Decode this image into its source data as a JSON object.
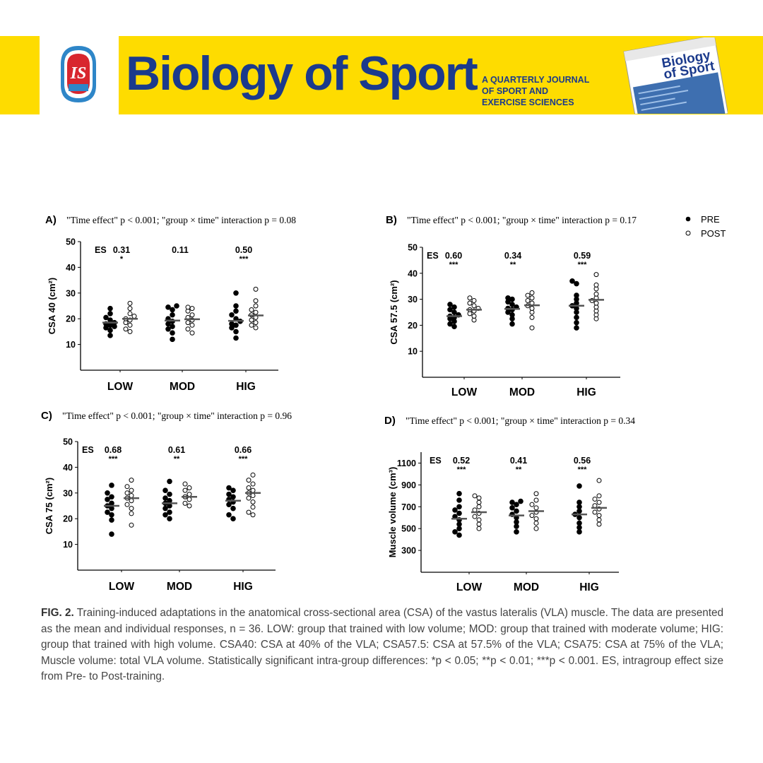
{
  "header": {
    "journal_title": "Biology of Sport",
    "tagline": [
      "A QUARTERLY JOURNAL",
      "OF SPORT AND",
      "EXERCISE SCIENCES"
    ],
    "cover_title_line1": "Biology",
    "cover_title_line2": "of Sport",
    "logo_text": "IS",
    "colors": {
      "band": "#FEDC00",
      "text": "#1B3A8C",
      "cover": "#3E6FB0"
    }
  },
  "legend": {
    "pre": "PRE",
    "post": "POST"
  },
  "chart_data": [
    {
      "type": "scatter",
      "panel": "A)",
      "title": "\"Time effect\" p < 0.001; \"group × time\" interaction p = 0.08",
      "ylabel": "CSA 40 (cm²)",
      "ylim": [
        0,
        50
      ],
      "yticks": [
        "10",
        "20",
        "30",
        "40",
        "50"
      ],
      "categories": [
        "LOW",
        "MOD",
        "HIG"
      ],
      "es_label": "ES",
      "es": [
        "0.31",
        "0.11",
        "0.50"
      ],
      "sig": [
        "*",
        "",
        "***"
      ],
      "series": [
        {
          "name": "PRE",
          "means": [
            18.5,
            19.3,
            19.2
          ],
          "points": [
            [
              13.5,
              15.5,
              16.5,
              17,
              17.5,
              18,
              18.5,
              19.5,
              20.5,
              22,
              24
            ],
            [
              12,
              14.5,
              16,
              17,
              18,
              19,
              20,
              21.5,
              23.5,
              24.5,
              25
            ],
            [
              12.5,
              15,
              16.5,
              17.5,
              18,
              19,
              20,
              21.5,
              23,
              25,
              30
            ]
          ]
        },
        {
          "name": "POST",
          "means": [
            20,
            19.8,
            21.3
          ],
          "points": [
            [
              15,
              16,
              17.5,
              18.5,
              19.5,
              20,
              21,
              22,
              24,
              26
            ],
            [
              14.5,
              16,
              17.5,
              18.5,
              19.5,
              20.5,
              21.5,
              23,
              24,
              24.5
            ],
            [
              16.5,
              17.5,
              18.5,
              19.5,
              20.5,
              21.5,
              22.5,
              23.5,
              25,
              27,
              31.5
            ]
          ]
        }
      ]
    },
    {
      "type": "scatter",
      "panel": "B)",
      "title": "\"Time effect\" p < 0.001; \"group × time\" interaction p = 0.17",
      "ylabel": "CSA 57.5 (cm²)",
      "ylim": [
        0,
        50
      ],
      "yticks": [
        "10",
        "20",
        "30",
        "40",
        "50"
      ],
      "categories": [
        "LOW",
        "MOD",
        "HIG"
      ],
      "es_label": "ES",
      "es": [
        "0.60",
        "0.34",
        "0.59"
      ],
      "sig": [
        "***",
        "**",
        "***"
      ],
      "series": [
        {
          "name": "PRE",
          "means": [
            23.5,
            26.3,
            27.5
          ],
          "points": [
            [
              19.5,
              20.5,
              21.5,
              22.5,
              23,
              23.5,
              24,
              25,
              26,
              27,
              28
            ],
            [
              20.5,
              22.5,
              24,
              25,
              26,
              26.5,
              27,
              28,
              29,
              30,
              30.5
            ],
            [
              19,
              21,
              23,
              25,
              26.5,
              27.5,
              28.5,
              30,
              31.5,
              36,
              37
            ]
          ]
        },
        {
          "name": "POST",
          "means": [
            26,
            27.7,
            29.8
          ],
          "points": [
            [
              22,
              23.5,
              24.5,
              25.5,
              26,
              26.5,
              27.5,
              28.5,
              29.5,
              30.5
            ],
            [
              19,
              23,
              25,
              26.5,
              27.5,
              28.5,
              29.5,
              30.5,
              31.5,
              32.5
            ],
            [
              22.5,
              24,
              25.5,
              27,
              28.5,
              29.5,
              30.5,
              32,
              34,
              35.5,
              39.5
            ]
          ]
        }
      ]
    },
    {
      "type": "scatter",
      "panel": "C)",
      "title": "\"Time effect\" p < 0.001; \"group × time\" interaction p = 0.96",
      "ylabel": "CSA 75 (cm²)",
      "ylim": [
        0,
        50
      ],
      "yticks": [
        "10",
        "20",
        "30",
        "40",
        "50"
      ],
      "categories": [
        "LOW",
        "MOD",
        "HIG"
      ],
      "es_label": "ES",
      "es": [
        "0.68",
        "0.61",
        "0.66"
      ],
      "sig": [
        "***",
        "**",
        "***"
      ],
      "series": [
        {
          "name": "PRE",
          "means": [
            25,
            26,
            27
          ],
          "points": [
            [
              14,
              19.5,
              21.5,
              22.5,
              24,
              25,
              26,
              27.5,
              28.5,
              30,
              33
            ],
            [
              20,
              21.5,
              22.5,
              24,
              25,
              26,
              27,
              28,
              29.5,
              31,
              34.5
            ],
            [
              20,
              21.5,
              24,
              25.5,
              26.5,
              27.5,
              28.5,
              29.5,
              31,
              32
            ]
          ]
        },
        {
          "name": "POST",
          "means": [
            28,
            28.5,
            30
          ],
          "points": [
            [
              17.5,
              22,
              24,
              25.5,
              27,
              28,
              29,
              30,
              31,
              32.5,
              35
            ],
            [
              25,
              26,
              27.5,
              28.5,
              29.5,
              31,
              32,
              33.5
            ],
            [
              21.5,
              22.5,
              24.5,
              26.5,
              28,
              29,
              30,
              31,
              32,
              33.5,
              35,
              37
            ]
          ]
        }
      ]
    },
    {
      "type": "scatter",
      "panel": "D)",
      "title": "\"Time effect\" p < 0.001; \"group × time\" interaction p = 0.34",
      "ylabel": "Muscle volume (cm³)",
      "ylim": [
        100,
        1200
      ],
      "yticks": [
        "300",
        "500",
        "700",
        "900",
        "1100"
      ],
      "categories": [
        "LOW",
        "MOD",
        "HIG"
      ],
      "es_label": "ES",
      "es": [
        "0.52",
        "0.41",
        "0.56"
      ],
      "sig": [
        "***",
        "**",
        "***"
      ],
      "series": [
        {
          "name": "PRE",
          "means": [
            590,
            620,
            630
          ],
          "points": [
            [
              440,
              470,
              500,
              540,
              580,
              610,
              640,
              670,
              700,
              760,
              820
            ],
            [
              470,
              520,
              560,
              600,
              630,
              660,
              690,
              720,
              740,
              750
            ],
            [
              470,
              510,
              550,
              600,
              630,
              660,
              700,
              740,
              890
            ]
          ]
        },
        {
          "name": "POST",
          "means": [
            650,
            660,
            690
          ],
          "points": [
            [
              500,
              540,
              580,
              610,
              640,
              670,
              700,
              740,
              780,
              800
            ],
            [
              500,
              550,
              590,
              620,
              650,
              690,
              720,
              760,
              820
            ],
            [
              540,
              580,
              620,
              650,
              680,
              710,
              740,
              770,
              800,
              940
            ]
          ]
        }
      ]
    }
  ],
  "caption": {
    "label": "FIG. 2.",
    "text": " Training-induced adaptations in the anatomical cross-sectional area (CSA) of the vastus lateralis (VLA) muscle. The data are presented as the mean and individual responses, n = 36. LOW: group that trained with low volume; MOD: group that trained with moderate volume; HIG: group that trained with high volume. CSA40: CSA at 40% of the VLA; CSA57.5: CSA at 57.5% of the VLA; CSA75: CSA at 75% of the VLA; Muscle volume: total VLA volume. Statistically significant intra-group differences: *p < 0.05; **p < 0.01; ***p < 0.001. ES, intragroup effect size from Pre- to Post-training."
  }
}
